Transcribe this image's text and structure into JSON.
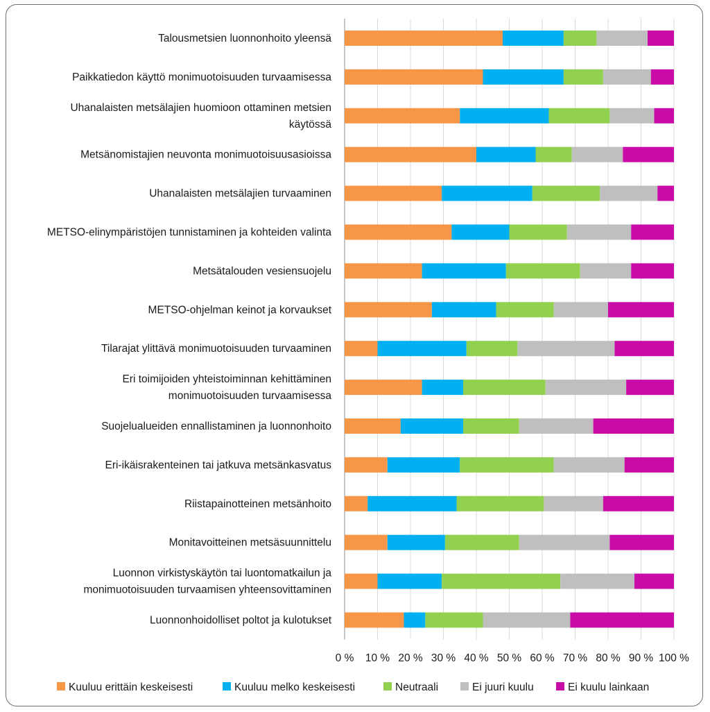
{
  "chart_data": {
    "type": "bar",
    "orientation": "horizontal",
    "stacked": "percent",
    "title": "",
    "xlabel": "",
    "ylabel": "",
    "xlim": [
      0,
      100
    ],
    "x_ticks": [
      "0 %",
      "10 %",
      "20 %",
      "30 %",
      "40 %",
      "50 %",
      "60 %",
      "70 %",
      "80 %",
      "90 %",
      "100 %"
    ],
    "legend_position": "bottom",
    "categories": [
      [
        "Talousmetsien luonnonhoito yleensä"
      ],
      [
        "Paikkatiedon käyttö monimuotoisuuden turvaamisessa"
      ],
      [
        "Uhanalaisten metsälajien huomioon ottaminen metsien",
        "käytössä"
      ],
      [
        "Metsänomistajien neuvonta monimuotoisuusasioissa"
      ],
      [
        "Uhanalaisten metsälajien turvaaminen"
      ],
      [
        "METSO-elinympäristöjen tunnistaminen ja kohteiden valinta"
      ],
      [
        "Metsätalouden vesiensuojelu"
      ],
      [
        "METSO-ohjelman keinot ja korvaukset"
      ],
      [
        "Tilarajat ylittävä monimuotoisuuden turvaaminen"
      ],
      [
        "Eri toimijoiden yhteistoiminnan kehittäminen",
        "monimuotoisuuden turvaamisessa"
      ],
      [
        "Suojelualueiden ennallistaminen ja luonnonhoito"
      ],
      [
        "Eri-ikäisrakenteinen tai jatkuva metsänkasvatus"
      ],
      [
        "Riistapainotteinen metsänhoito"
      ],
      [
        "Monitavoitteinen metsäsuunnittelu"
      ],
      [
        "Luonnon virkistyskäytön tai luontomatkailun ja",
        "monimuotoisuuden turvaamisen yhteensovittaminen"
      ],
      [
        "Luonnonhoidolliset poltot ja kulotukset"
      ]
    ],
    "series": [
      {
        "name": "Kuuluu erittäin keskeisesti",
        "color": "#f79646",
        "values": [
          48,
          42,
          35,
          40,
          29.5,
          32.5,
          23.5,
          26.5,
          10,
          23.5,
          17,
          13,
          7,
          13,
          10,
          18
        ]
      },
      {
        "name": "Kuuluu melko keskeisesti",
        "color": "#00b0f0",
        "values": [
          18.5,
          24.5,
          27,
          18,
          27.5,
          17.5,
          25.5,
          19.5,
          27,
          12.5,
          19,
          22,
          27,
          17.5,
          19.5,
          6.5
        ]
      },
      {
        "name": "Neutraali",
        "color": "#92d050",
        "values": [
          10,
          12,
          18.5,
          11,
          20.5,
          17.5,
          22.5,
          17.5,
          15.5,
          25,
          17,
          28.5,
          26.5,
          22.5,
          36,
          17.5
        ]
      },
      {
        "name": "Ei juuri kuulu",
        "color": "#bfbfbf",
        "values": [
          15.5,
          14.5,
          13.5,
          15.5,
          17.5,
          19.5,
          15.5,
          16.5,
          29.5,
          24.5,
          22.5,
          21.5,
          18,
          27.5,
          22.5,
          26.5
        ]
      },
      {
        "name": "Ei kuulu lainkaan",
        "color": "#c90ca7",
        "values": [
          8,
          7,
          6,
          15.5,
          5,
          13,
          13,
          20,
          18,
          14.5,
          24.5,
          15,
          21.5,
          19.5,
          12,
          31.5
        ]
      }
    ]
  }
}
